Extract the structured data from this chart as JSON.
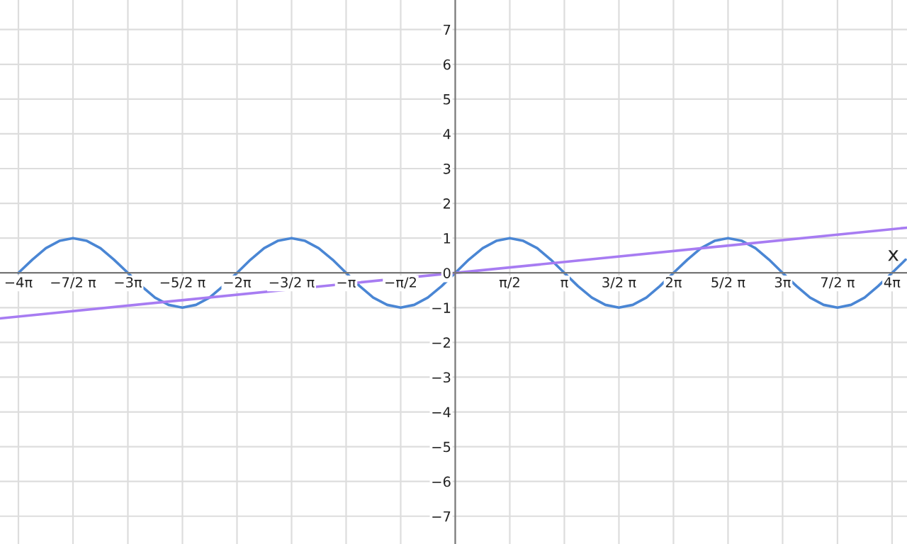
{
  "chart_data": {
    "type": "line",
    "xlabel": "x",
    "xlim": [
      -13.1,
      13.0
    ],
    "ylim": [
      -7.8,
      7.85
    ],
    "xticks": [
      {
        "value": -12.57,
        "label": "−4π"
      },
      {
        "value": -11.0,
        "label": "−7/2 π"
      },
      {
        "value": -9.42,
        "label": "−3π"
      },
      {
        "value": -7.85,
        "label": "−5/2 π"
      },
      {
        "value": -6.28,
        "label": "−2π"
      },
      {
        "value": -4.71,
        "label": "−3/2 π"
      },
      {
        "value": -3.14,
        "label": "−π"
      },
      {
        "value": -1.57,
        "label": "−π/2"
      },
      {
        "value": 1.57,
        "label": "π/2"
      },
      {
        "value": 3.14,
        "label": "π"
      },
      {
        "value": 4.71,
        "label": "3/2 π"
      },
      {
        "value": 6.28,
        "label": "2π"
      },
      {
        "value": 7.85,
        "label": "5/2 π"
      },
      {
        "value": 9.42,
        "label": "3π"
      },
      {
        "value": 11.0,
        "label": "7/2 π"
      },
      {
        "value": 12.57,
        "label": "4π"
      }
    ],
    "yticks": [
      -7,
      -6,
      -5,
      -4,
      -3,
      -2,
      -1,
      0,
      1,
      2,
      3,
      4,
      5,
      6,
      7
    ],
    "grid": true,
    "marker": "none",
    "line_style": "solid",
    "series": [
      {
        "color": "#4a86d4",
        "x": [
          -12.57,
          -12.17,
          -11.78,
          -11.39,
          -11.0,
          -10.6,
          -10.21,
          -9.82,
          -9.42,
          -9.03,
          -8.64,
          -8.25,
          -7.85,
          -7.46,
          -7.07,
          -6.68,
          -6.28,
          -5.89,
          -5.5,
          -5.11,
          -4.71,
          -4.32,
          -3.93,
          -3.53,
          -3.14,
          -2.75,
          -2.36,
          -1.96,
          -1.57,
          -1.18,
          -0.79,
          -0.39,
          0,
          0.39,
          0.79,
          1.18,
          1.57,
          1.96,
          2.36,
          2.75,
          3.14,
          3.53,
          3.93,
          4.32,
          4.71,
          5.11,
          5.5,
          5.89,
          6.28,
          6.68,
          7.07,
          7.46,
          7.85,
          8.25,
          8.64,
          9.03,
          9.42,
          9.82,
          10.21,
          10.6,
          11.0,
          11.39,
          11.78,
          12.17,
          12.57,
          12.96
        ],
        "values": [
          0,
          0.38,
          0.71,
          0.92,
          1,
          0.92,
          0.71,
          0.38,
          0,
          -0.38,
          -0.71,
          -0.92,
          -1,
          -0.92,
          -0.71,
          -0.38,
          0,
          0.38,
          0.71,
          0.92,
          1,
          0.92,
          0.71,
          0.38,
          0,
          -0.38,
          -0.71,
          -0.92,
          -1,
          -0.92,
          -0.71,
          -0.38,
          0,
          0.38,
          0.71,
          0.92,
          1,
          0.92,
          0.71,
          0.38,
          0,
          -0.38,
          -0.71,
          -0.92,
          -1,
          -0.92,
          -0.71,
          -0.38,
          0,
          0.38,
          0.71,
          0.92,
          1,
          0.92,
          0.71,
          0.38,
          0,
          -0.38,
          -0.71,
          -0.92,
          -1,
          -0.92,
          -0.71,
          -0.38,
          0,
          0.38
        ]
      },
      {
        "color": "#a77cf2",
        "x": [
          -13.1,
          13.0
        ],
        "values": [
          -1.31,
          1.3
        ]
      }
    ]
  }
}
